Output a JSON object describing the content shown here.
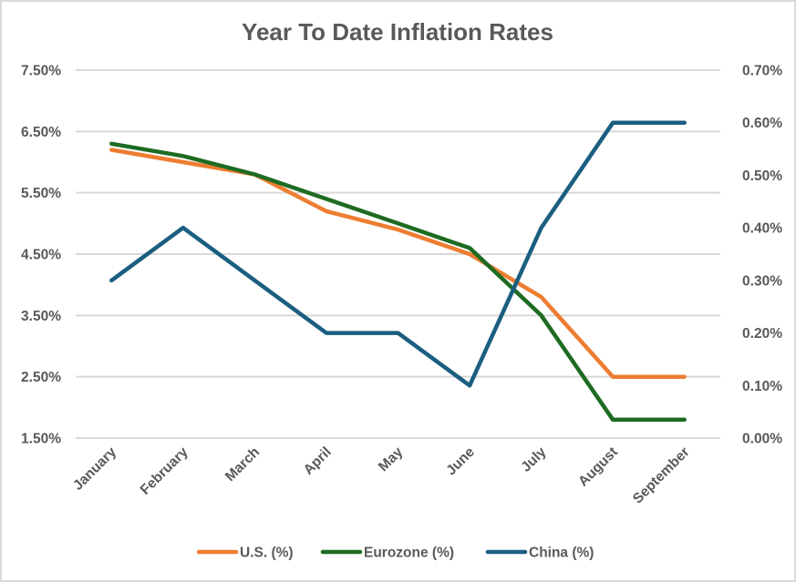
{
  "chart_data": {
    "type": "line",
    "title": "Year To Date Inflation Rates",
    "xlabel": "",
    "ylabel": "",
    "categories": [
      "January",
      "February",
      "March",
      "April",
      "May",
      "June",
      "July",
      "August",
      "September"
    ],
    "y_left": {
      "range": [
        1.5,
        7.5
      ],
      "ticks": [
        1.5,
        2.5,
        3.5,
        4.5,
        5.5,
        6.5,
        7.5
      ],
      "tick_labels": [
        "1.50%",
        "2.50%",
        "3.50%",
        "4.50%",
        "5.50%",
        "6.50%",
        "7.50%"
      ]
    },
    "y_right": {
      "range": [
        0.0,
        0.7
      ],
      "ticks": [
        0.0,
        0.1,
        0.2,
        0.3,
        0.4,
        0.5,
        0.6,
        0.7
      ],
      "tick_labels": [
        "0.00%",
        "0.10%",
        "0.20%",
        "0.30%",
        "0.40%",
        "0.50%",
        "0.60%",
        "0.70%"
      ]
    },
    "grid": true,
    "legend_position": "bottom",
    "series": [
      {
        "name": "U.S. (%)",
        "axis": "left",
        "color": "#ed7d31",
        "values": [
          6.2,
          6.0,
          5.8,
          5.2,
          4.9,
          4.5,
          3.8,
          2.5,
          2.5
        ]
      },
      {
        "name": "Eurozone (%)",
        "axis": "left",
        "color": "#1e6b22",
        "values": [
          6.3,
          6.1,
          5.8,
          5.4,
          5.0,
          4.6,
          3.5,
          1.8,
          1.8
        ]
      },
      {
        "name": "China (%)",
        "axis": "right",
        "color": "#1b5e80",
        "values": [
          0.3,
          0.4,
          0.3,
          0.2,
          0.2,
          0.1,
          0.4,
          0.6,
          0.6
        ]
      }
    ]
  }
}
